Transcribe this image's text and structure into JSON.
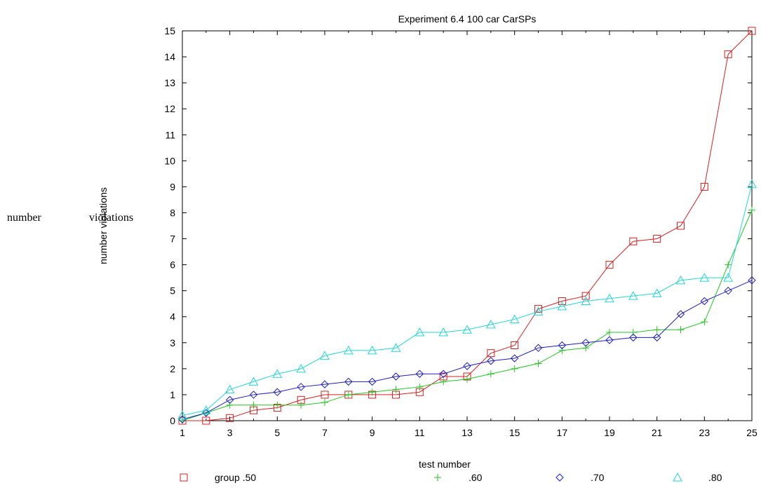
{
  "stray_labels": [
    "number",
    "violations"
  ],
  "chart_data": {
    "type": "line",
    "title": "Experiment 6.4 100 car CarSPs",
    "xlabel": "test number",
    "ylabel": "number violations",
    "x": [
      1,
      2,
      3,
      4,
      5,
      6,
      7,
      8,
      9,
      10,
      11,
      12,
      13,
      14,
      15,
      16,
      17,
      18,
      19,
      20,
      21,
      22,
      23,
      24,
      25
    ],
    "xlim": [
      1,
      25
    ],
    "ylim": [
      0,
      15
    ],
    "xticks": [
      "1",
      "3",
      "5",
      "7",
      "9",
      "11",
      "13",
      "15",
      "17",
      "19",
      "21",
      "23",
      "25"
    ],
    "yticks": [
      "0",
      "1",
      "2",
      "3",
      "4",
      "5",
      "6",
      "7",
      "8",
      "9",
      "10",
      "11",
      "12",
      "13",
      "14",
      "15"
    ],
    "grid": false,
    "legend_position": "bottom",
    "series": [
      {
        "name": "group .50",
        "color": "#d62020",
        "marker": "square",
        "values": [
          0,
          0,
          0.1,
          0.4,
          0.5,
          0.8,
          1.0,
          1.0,
          1.0,
          1.0,
          1.1,
          1.7,
          1.7,
          2.6,
          2.9,
          4.3,
          4.6,
          4.8,
          6.0,
          6.9,
          7.0,
          7.5,
          9.0,
          14.1,
          15.0
        ]
      },
      {
        "name": ".60",
        "color": "#22c822",
        "marker": "plus",
        "values": [
          0,
          0.3,
          0.6,
          0.6,
          0.6,
          0.6,
          0.7,
          1.0,
          1.1,
          1.2,
          1.3,
          1.5,
          1.6,
          1.8,
          2.0,
          2.2,
          2.7,
          2.8,
          3.4,
          3.4,
          3.5,
          3.5,
          3.8,
          6.0,
          8.1
        ]
      },
      {
        "name": ".70",
        "color": "#1c1cc8",
        "marker": "diamond",
        "values": [
          0.05,
          0.3,
          0.8,
          1.0,
          1.1,
          1.3,
          1.4,
          1.5,
          1.5,
          1.7,
          1.8,
          1.8,
          2.1,
          2.3,
          2.4,
          2.8,
          2.9,
          3.0,
          3.1,
          3.2,
          3.2,
          4.1,
          4.6,
          5.0,
          5.4
        ]
      },
      {
        "name": ".80",
        "color": "#22d8d8",
        "marker": "triangle",
        "values": [
          0.2,
          0.4,
          1.2,
          1.5,
          1.8,
          2.0,
          2.5,
          2.7,
          2.7,
          2.8,
          3.4,
          3.4,
          3.5,
          3.7,
          3.9,
          4.2,
          4.4,
          4.6,
          4.7,
          4.8,
          4.9,
          5.4,
          5.5,
          5.5,
          9.1
        ]
      }
    ]
  }
}
